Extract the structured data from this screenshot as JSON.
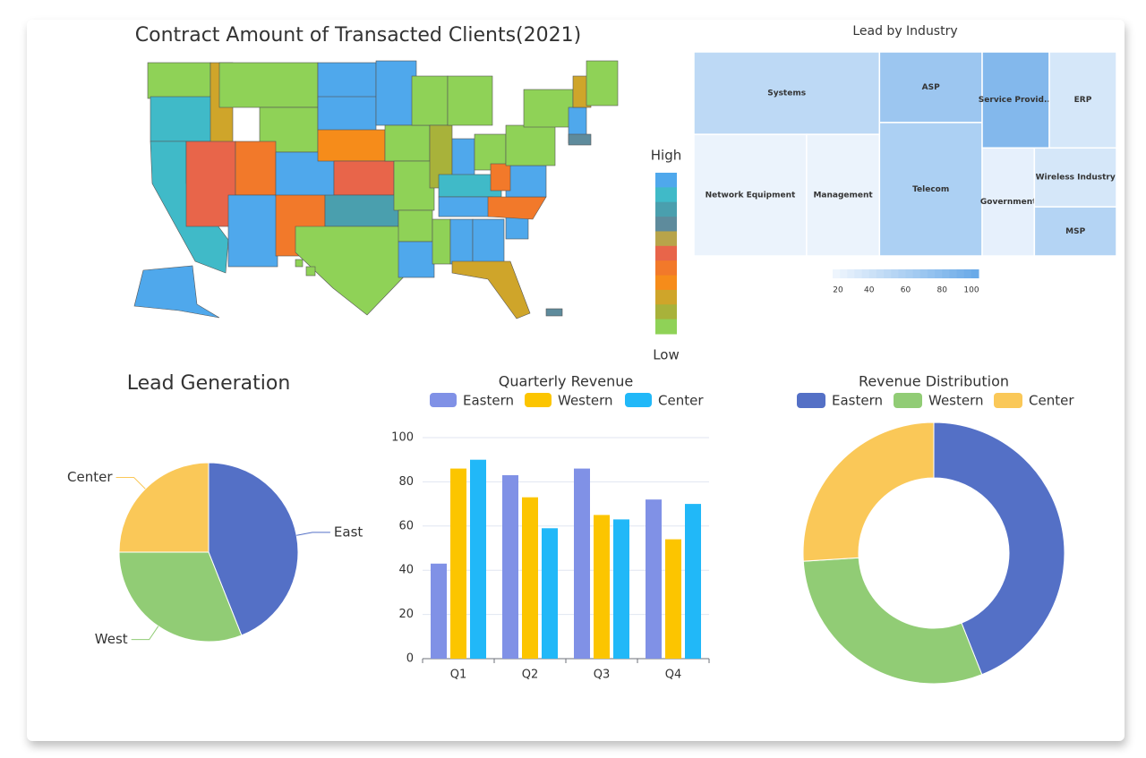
{
  "chart_data": [
    {
      "type": "map",
      "title": "Contract Amount of Transacted Clients(2021)",
      "legend_high": "High",
      "legend_low": "Low",
      "colors": [
        "#4fa8ec",
        "#40bac8",
        "#4a9fae",
        "#5e8b9c",
        "#b8a44a",
        "#e8654a",
        "#f2792a",
        "#f68c1a",
        "#cfa52a",
        "#a8b23a",
        "#8fd257"
      ]
    },
    {
      "type": "treemap",
      "title": "Lead by Industry",
      "categories": [
        "Systems",
        "Network Equipment",
        "Management",
        "ASP",
        "Telecom",
        "Service Provid...",
        "ERP",
        "Government",
        "Wireless Industry",
        "MSP"
      ],
      "values": [
        19,
        17,
        11,
        9,
        17,
        8,
        8,
        7,
        6,
        5
      ],
      "color_values": [
        50,
        22,
        22,
        70,
        60,
        85,
        35,
        25,
        35,
        55
      ],
      "color_lim": [
        20,
        100
      ],
      "color_ticks": [
        20,
        40,
        60,
        80,
        100
      ],
      "colors": [
        "#eef5fd",
        "#6aaae8"
      ]
    },
    {
      "type": "pie",
      "title": "Lead Generation",
      "categories": [
        "East",
        "West",
        "Center"
      ],
      "values": [
        44,
        31,
        25
      ],
      "colors": [
        "#5470c6",
        "#91cc75",
        "#fac858"
      ]
    },
    {
      "type": "bar",
      "title": "Quarterly Revenue",
      "categories": [
        "Q1",
        "Q2",
        "Q3",
        "Q4"
      ],
      "series": [
        {
          "name": "Eastern",
          "color": "#8091e6",
          "values": [
            43,
            83,
            86,
            72
          ]
        },
        {
          "name": "Western",
          "color": "#fcc500",
          "values": [
            86,
            73,
            65,
            54
          ]
        },
        {
          "name": "Center",
          "color": "#21b8f8",
          "values": [
            90,
            59,
            63,
            70
          ]
        }
      ],
      "ylim": [
        0,
        100
      ],
      "yticks": [
        0,
        20,
        40,
        60,
        80,
        100
      ],
      "grid": true
    },
    {
      "type": "donut",
      "title": "Revenue Distribution",
      "categories": [
        "Eastern",
        "Western",
        "Center"
      ],
      "values": [
        44,
        30,
        26
      ],
      "colors": [
        "#5470c6",
        "#91cc75",
        "#fac858"
      ]
    }
  ]
}
